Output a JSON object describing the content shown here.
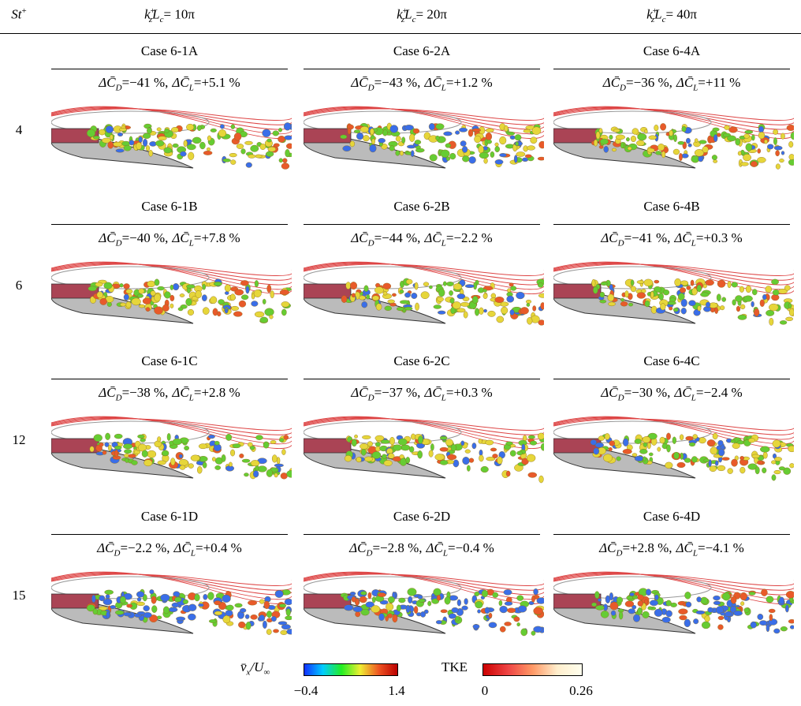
{
  "header": {
    "row_label": {
      "base": "St",
      "sup": "+"
    },
    "columns": [
      {
        "k": "k",
        "sup": "+",
        "sub": "z",
        "L": "L",
        "sub2": "c",
        "eq": "= 10π"
      },
      {
        "k": "k",
        "sup": "+",
        "sub": "z",
        "L": "L",
        "sub2": "c",
        "eq": "= 20π"
      },
      {
        "k": "k",
        "sup": "+",
        "sub": "z",
        "L": "L",
        "sub2": "c",
        "eq": "= 40π"
      }
    ]
  },
  "coefficient_labels": {
    "symbol": "ΔC̄",
    "drag_sub": "D",
    "lift_sub": "L",
    "eq": "=",
    "sep": ","
  },
  "rows": [
    {
      "label": "4",
      "cases": [
        {
          "name": "Case 6-1A",
          "drag": "−41 %",
          "lift": "+5.1 %"
        },
        {
          "name": "Case 6-2A",
          "drag": "−43 %",
          "lift": "+1.2 %"
        },
        {
          "name": "Case 6-4A",
          "drag": "−36 %",
          "lift": "+11 %"
        }
      ]
    },
    {
      "label": "6",
      "cases": [
        {
          "name": "Case 6-1B",
          "drag": "−40 %",
          "lift": "+7.8 %"
        },
        {
          "name": "Case 6-2B",
          "drag": "−44 %",
          "lift": "−2.2 %"
        },
        {
          "name": "Case 6-4B",
          "drag": "−41 %",
          "lift": "+0.3 %"
        }
      ]
    },
    {
      "label": "12",
      "cases": [
        {
          "name": "Case 6-1C",
          "drag": "−38 %",
          "lift": "+2.8 %"
        },
        {
          "name": "Case 6-2C",
          "drag": "−37 %",
          "lift": "+0.3 %"
        },
        {
          "name": "Case 6-4C",
          "drag": "−30 %",
          "lift": "−2.4 %"
        }
      ]
    },
    {
      "label": "15",
      "cases": [
        {
          "name": "Case 6-1D",
          "drag": "−2.2 %",
          "lift": "+0.4 %"
        },
        {
          "name": "Case 6-2D",
          "drag": "−2.8 %",
          "lift": "−0.4 %"
        },
        {
          "name": "Case 6-4D",
          "drag": "+2.8 %",
          "lift": "−4.1 %"
        }
      ]
    }
  ],
  "colorbars": [
    {
      "label": {
        "base": "v̄",
        "sub": "x",
        "rest": "/U",
        "sub2": "∞"
      },
      "min": "−0.4",
      "max": "1.4"
    },
    {
      "label": {
        "base": "TKE"
      },
      "min": "0",
      "max": "0.26"
    }
  ]
}
